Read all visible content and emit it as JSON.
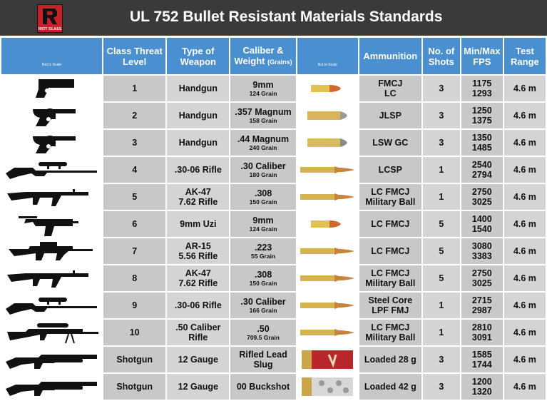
{
  "header": {
    "title": "UL 752 Bullet Resistant Materials Standards",
    "logo_text": "RIOT GLASS",
    "brand_color": "#c8202a"
  },
  "table": {
    "headers": {
      "weapon_image": "Not to Scale",
      "class": "Class Threat Level",
      "type": "Type of Weapon",
      "caliber": "Caliber & Weight",
      "caliber_unit": "(Grains)",
      "bullet_image": "Not to Scale",
      "ammo": "Ammunition",
      "shots": "No. of Shots",
      "fps": "Min/Max FPS",
      "range": "Test Range"
    },
    "rows": [
      {
        "class": "1",
        "type1": "Handgun",
        "type2": "",
        "cal": "9mm",
        "grain": "124 Grain",
        "ammo1": "FMCJ",
        "ammo2": "LC",
        "shots": "3",
        "fps_min": "1175",
        "fps_max": "1293",
        "range": "4.6 m",
        "weapon_icon": "pistol-icon",
        "bullet_icon": "9mm-bullet-icon"
      },
      {
        "class": "2",
        "type1": "Handgun",
        "type2": "",
        "cal": ".357 Magnum",
        "grain": "158 Grain",
        "ammo1": "JLSP",
        "ammo2": "",
        "shots": "3",
        "fps_min": "1250",
        "fps_max": "1375",
        "range": "4.6 m",
        "weapon_icon": "revolver-icon",
        "bullet_icon": "357-bullet-icon"
      },
      {
        "class": "3",
        "type1": "Handgun",
        "type2": "",
        "cal": ".44 Magnum",
        "grain": "240 Grain",
        "ammo1": "LSW GC",
        "ammo2": "",
        "shots": "3",
        "fps_min": "1350",
        "fps_max": "1485",
        "range": "4.6 m",
        "weapon_icon": "revolver-icon",
        "bullet_icon": "44-bullet-icon"
      },
      {
        "class": "4",
        "type1": ".30-06 Rifle",
        "type2": "",
        "cal": ".30 Caliber",
        "grain": "180 Grain",
        "ammo1": "LCSP",
        "ammo2": "",
        "shots": "1",
        "fps_min": "2540",
        "fps_max": "2794",
        "range": "4.6 m",
        "weapon_icon": "scoped-rifle-icon",
        "bullet_icon": "rifle-bullet-icon"
      },
      {
        "class": "5",
        "type1": "AK-47",
        "type2": "7.62 Rifle",
        "cal": ".308",
        "grain": "150 Grain",
        "ammo1": "LC FMCJ",
        "ammo2": "Military Ball",
        "shots": "1",
        "fps_min": "2750",
        "fps_max": "3025",
        "range": "4.6 m",
        "weapon_icon": "ak47-icon",
        "bullet_icon": "rifle-bullet-icon"
      },
      {
        "class": "6",
        "type1": "9mm Uzi",
        "type2": "",
        "cal": "9mm",
        "grain": "124 Grain",
        "ammo1": "LC FMCJ",
        "ammo2": "",
        "shots": "5",
        "fps_min": "1400",
        "fps_max": "1540",
        "range": "4.6 m",
        "weapon_icon": "uzi-icon",
        "bullet_icon": "9mm-bullet-icon"
      },
      {
        "class": "7",
        "type1": "AR-15",
        "type2": "5.56 Rifle",
        "cal": ".223",
        "grain": "55 Grain",
        "ammo1": "LC FMCJ",
        "ammo2": "",
        "shots": "5",
        "fps_min": "3080",
        "fps_max": "3383",
        "range": "4.6 m",
        "weapon_icon": "ar15-icon",
        "bullet_icon": "rifle-bullet-icon"
      },
      {
        "class": "8",
        "type1": "AK-47",
        "type2": "7.62 Rifle",
        "cal": ".308",
        "grain": "150 Grain",
        "ammo1": "LC FMCJ",
        "ammo2": "Military Ball",
        "shots": "5",
        "fps_min": "2750",
        "fps_max": "3025",
        "range": "4.6 m",
        "weapon_icon": "ak47-icon",
        "bullet_icon": "rifle-bullet-icon"
      },
      {
        "class": "9",
        "type1": ".30-06 Rifle",
        "type2": "",
        "cal": ".30 Caliber",
        "grain": "166 Grain",
        "ammo1": "Steel Core",
        "ammo2": "LPF FMJ",
        "shots": "1",
        "fps_min": "2715",
        "fps_max": "2987",
        "range": "4.6 m",
        "weapon_icon": "scoped-rifle-icon",
        "bullet_icon": "rifle-bullet-icon"
      },
      {
        "class": "10",
        "type1": ".50 Caliber",
        "type2": "Rifle",
        "cal": ".50",
        "grain": "709.5 Grain",
        "ammo1": "LC FMCJ",
        "ammo2": "Military Ball",
        "shots": "1",
        "fps_min": "2810",
        "fps_max": "3091",
        "range": "4.6 m",
        "weapon_icon": "50-cal-rifle-icon",
        "bullet_icon": "rifle-bullet-icon"
      },
      {
        "class": "Shotgun",
        "type1": "12 Gauge",
        "type2": "",
        "cal": "Rifled Lead",
        "cal2": "Slug",
        "grain": "",
        "ammo1": "Loaded 28 g",
        "ammo2": "",
        "shots": "3",
        "fps_min": "1585",
        "fps_max": "1744",
        "range": "4.6 m",
        "weapon_icon": "shotgun-icon",
        "bullet_icon": "shotgun-shell-red-icon"
      },
      {
        "class": "Shotgun",
        "type1": "12 Gauge",
        "type2": "",
        "cal": "00 Buckshot",
        "cal2": "",
        "grain": "",
        "ammo1": "Loaded 42 g",
        "ammo2": "",
        "shots": "3",
        "fps_min": "1200",
        "fps_max": "1320",
        "range": "4.6 m",
        "weapon_icon": "shotgun-icon",
        "bullet_icon": "shotgun-shell-clear-icon"
      }
    ]
  }
}
